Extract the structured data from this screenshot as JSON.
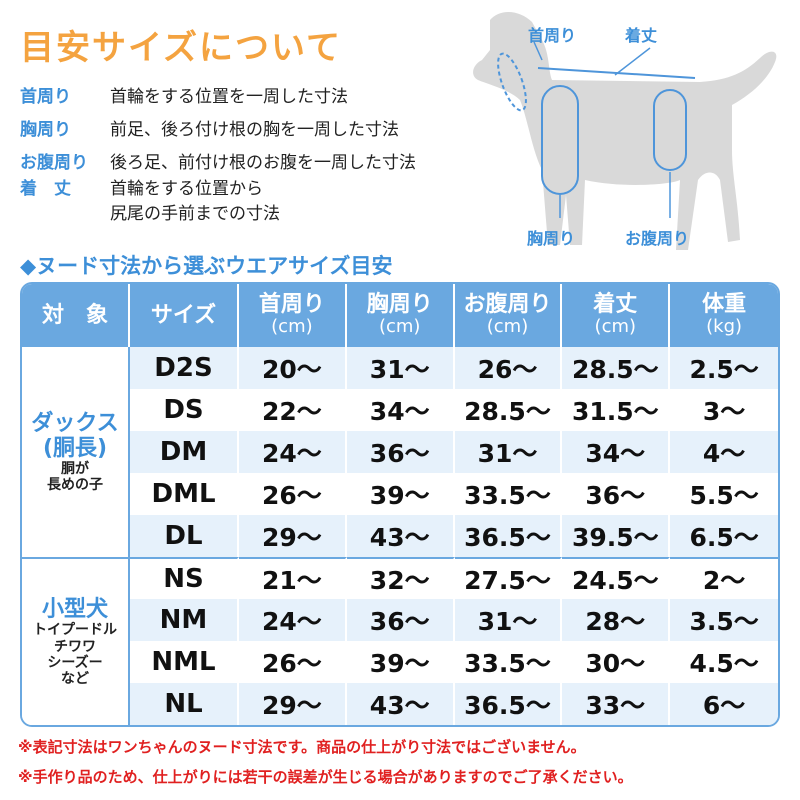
{
  "title": "目安サイズについて",
  "definitions": [
    {
      "term": "首周り",
      "desc": "首輪をする位置を一周した寸法"
    },
    {
      "term": "胸周り",
      "desc": "前足、後ろ付け根の胸を一周した寸法"
    },
    {
      "term": "お腹周り",
      "desc": "後ろ足、前付け根のお腹を一周した寸法"
    },
    {
      "term": "着　丈",
      "desc": "首輪をする位置から",
      "desc2": "尻尾の手前までの寸法"
    }
  ],
  "diagram_labels": {
    "neck": "首周り",
    "length": "着丈",
    "chest": "胸周り",
    "belly": "お腹周り"
  },
  "subtitle": "◆ヌード寸法から選ぶウエアサイズ目安",
  "table": {
    "headers": [
      {
        "l": "対　象"
      },
      {
        "l": "サイズ"
      },
      {
        "l": "首周り",
        "u": "(cm)"
      },
      {
        "l": "胸周り",
        "u": "(cm)"
      },
      {
        "l": "お腹周り",
        "u": "(cm)"
      },
      {
        "l": "着丈",
        "u": "(cm)"
      },
      {
        "l": "体重",
        "u": "(kg)"
      }
    ],
    "groups": [
      {
        "name": "ダックス",
        "name2": "(胴長)",
        "sub": "胴が",
        "sub2": "長めの子",
        "rows": [
          [
            "D2S",
            "20〜",
            "31〜",
            "26〜",
            "28.5〜",
            "2.5〜"
          ],
          [
            "DS",
            "22〜",
            "34〜",
            "28.5〜",
            "31.5〜",
            "3〜"
          ],
          [
            "DM",
            "24〜",
            "36〜",
            "31〜",
            "34〜",
            "4〜"
          ],
          [
            "DML",
            "26〜",
            "39〜",
            "33.5〜",
            "36〜",
            "5.5〜"
          ],
          [
            "DL",
            "29〜",
            "43〜",
            "36.5〜",
            "39.5〜",
            "6.5〜"
          ]
        ]
      },
      {
        "name": "小型犬",
        "sub": "トイプードル",
        "sub2": "チワワ",
        "sub3": "シーズー",
        "sub4": "など",
        "rows": [
          [
            "NS",
            "21〜",
            "32〜",
            "27.5〜",
            "24.5〜",
            "2〜"
          ],
          [
            "NM",
            "24〜",
            "36〜",
            "31〜",
            "28〜",
            "3.5〜"
          ],
          [
            "NML",
            "26〜",
            "39〜",
            "33.5〜",
            "30〜",
            "4.5〜"
          ],
          [
            "NL",
            "29〜",
            "43〜",
            "36.5〜",
            "33〜",
            "6〜"
          ]
        ]
      }
    ]
  },
  "notes": [
    "※表記寸法はワンちゃんのヌード寸法です。商品の仕上がり寸法ではございません。",
    "※手作り品のため、仕上がりには若干の誤差が生じる場合がありますのでご了承ください。"
  ],
  "colors": {
    "title": "#f4a340",
    "accent": "#3d8fd8",
    "header": "#6aa8e0",
    "row_alt": "#e6f1fb",
    "note": "#e02020"
  }
}
